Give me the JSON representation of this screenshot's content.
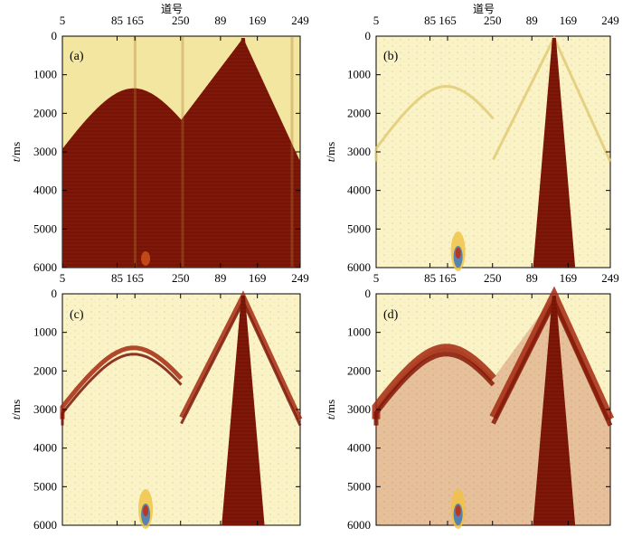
{
  "chart_data": [
    {
      "type": "heatmap",
      "panel_label": "(a)",
      "x_title": "道号",
      "x_tick_labels": [
        "5",
        "85",
        "165",
        "250",
        "89",
        "169",
        "249"
      ],
      "ylabel": "t/ms",
      "ylabel_italic": "t",
      "ylabel_unit": "/ms",
      "y_ticks": [
        0,
        1000,
        2000,
        3000,
        4000,
        5000,
        6000
      ],
      "ylim": [
        0,
        6000
      ],
      "y_reversed": true,
      "events": {
        "hyperbola_apex_ms": 1350,
        "v_shape_apex_ms": 0,
        "v_shape_edges_ms_at_250": 3200
      },
      "style": "dense full wavefield (dark red)"
    },
    {
      "type": "heatmap",
      "panel_label": "(b)",
      "x_title": "道号",
      "x_tick_labels": [
        "5",
        "85",
        "165",
        "250",
        "89",
        "169",
        "249"
      ],
      "ylabel": "t/ms",
      "ylabel_italic": "t",
      "ylabel_unit": "/ms",
      "y_ticks": [
        0,
        1000,
        2000,
        3000,
        4000,
        5000,
        6000
      ],
      "ylim": [
        0,
        6000
      ],
      "y_reversed": true,
      "events": {
        "hyperbola_apex_ms": 1300,
        "v_shape_apex_ms": 0
      },
      "style": "sparse (mostly light, dark wedge)"
    },
    {
      "type": "heatmap",
      "panel_label": "(c)",
      "x_tick_labels": [
        "5",
        "85",
        "165",
        "250",
        "89",
        "169",
        "249"
      ],
      "ylabel": "t/ms",
      "ylabel_italic": "t",
      "ylabel_unit": "/ms",
      "y_ticks": [
        0,
        1000,
        2000,
        3000,
        4000,
        5000,
        6000
      ],
      "ylim": [
        0,
        6000
      ],
      "y_reversed": true,
      "events": {
        "hyperbola_apex_ms": 1400,
        "v_shape_apex_ms": 0
      },
      "style": "thin dark events on light background"
    },
    {
      "type": "heatmap",
      "panel_label": "(d)",
      "x_tick_labels": [
        "5",
        "85",
        "165",
        "250",
        "89",
        "169",
        "249"
      ],
      "ylabel": "t/ms",
      "ylabel_italic": "t",
      "ylabel_unit": "/ms",
      "y_ticks": [
        0,
        1000,
        2000,
        3000,
        4000,
        5000,
        6000
      ],
      "ylim": [
        0,
        6000
      ],
      "y_reversed": true,
      "events": {
        "hyperbola_apex_ms": 1400,
        "v_shape_apex_ms": 0
      },
      "style": "medium density reconstruction"
    }
  ],
  "colors": {
    "background": "#f3e6a0",
    "background_light": "#fbf3c8",
    "wavelet_dark": "#7a1408",
    "wavelet_mid": "#a3280f",
    "frame": "#000000"
  }
}
